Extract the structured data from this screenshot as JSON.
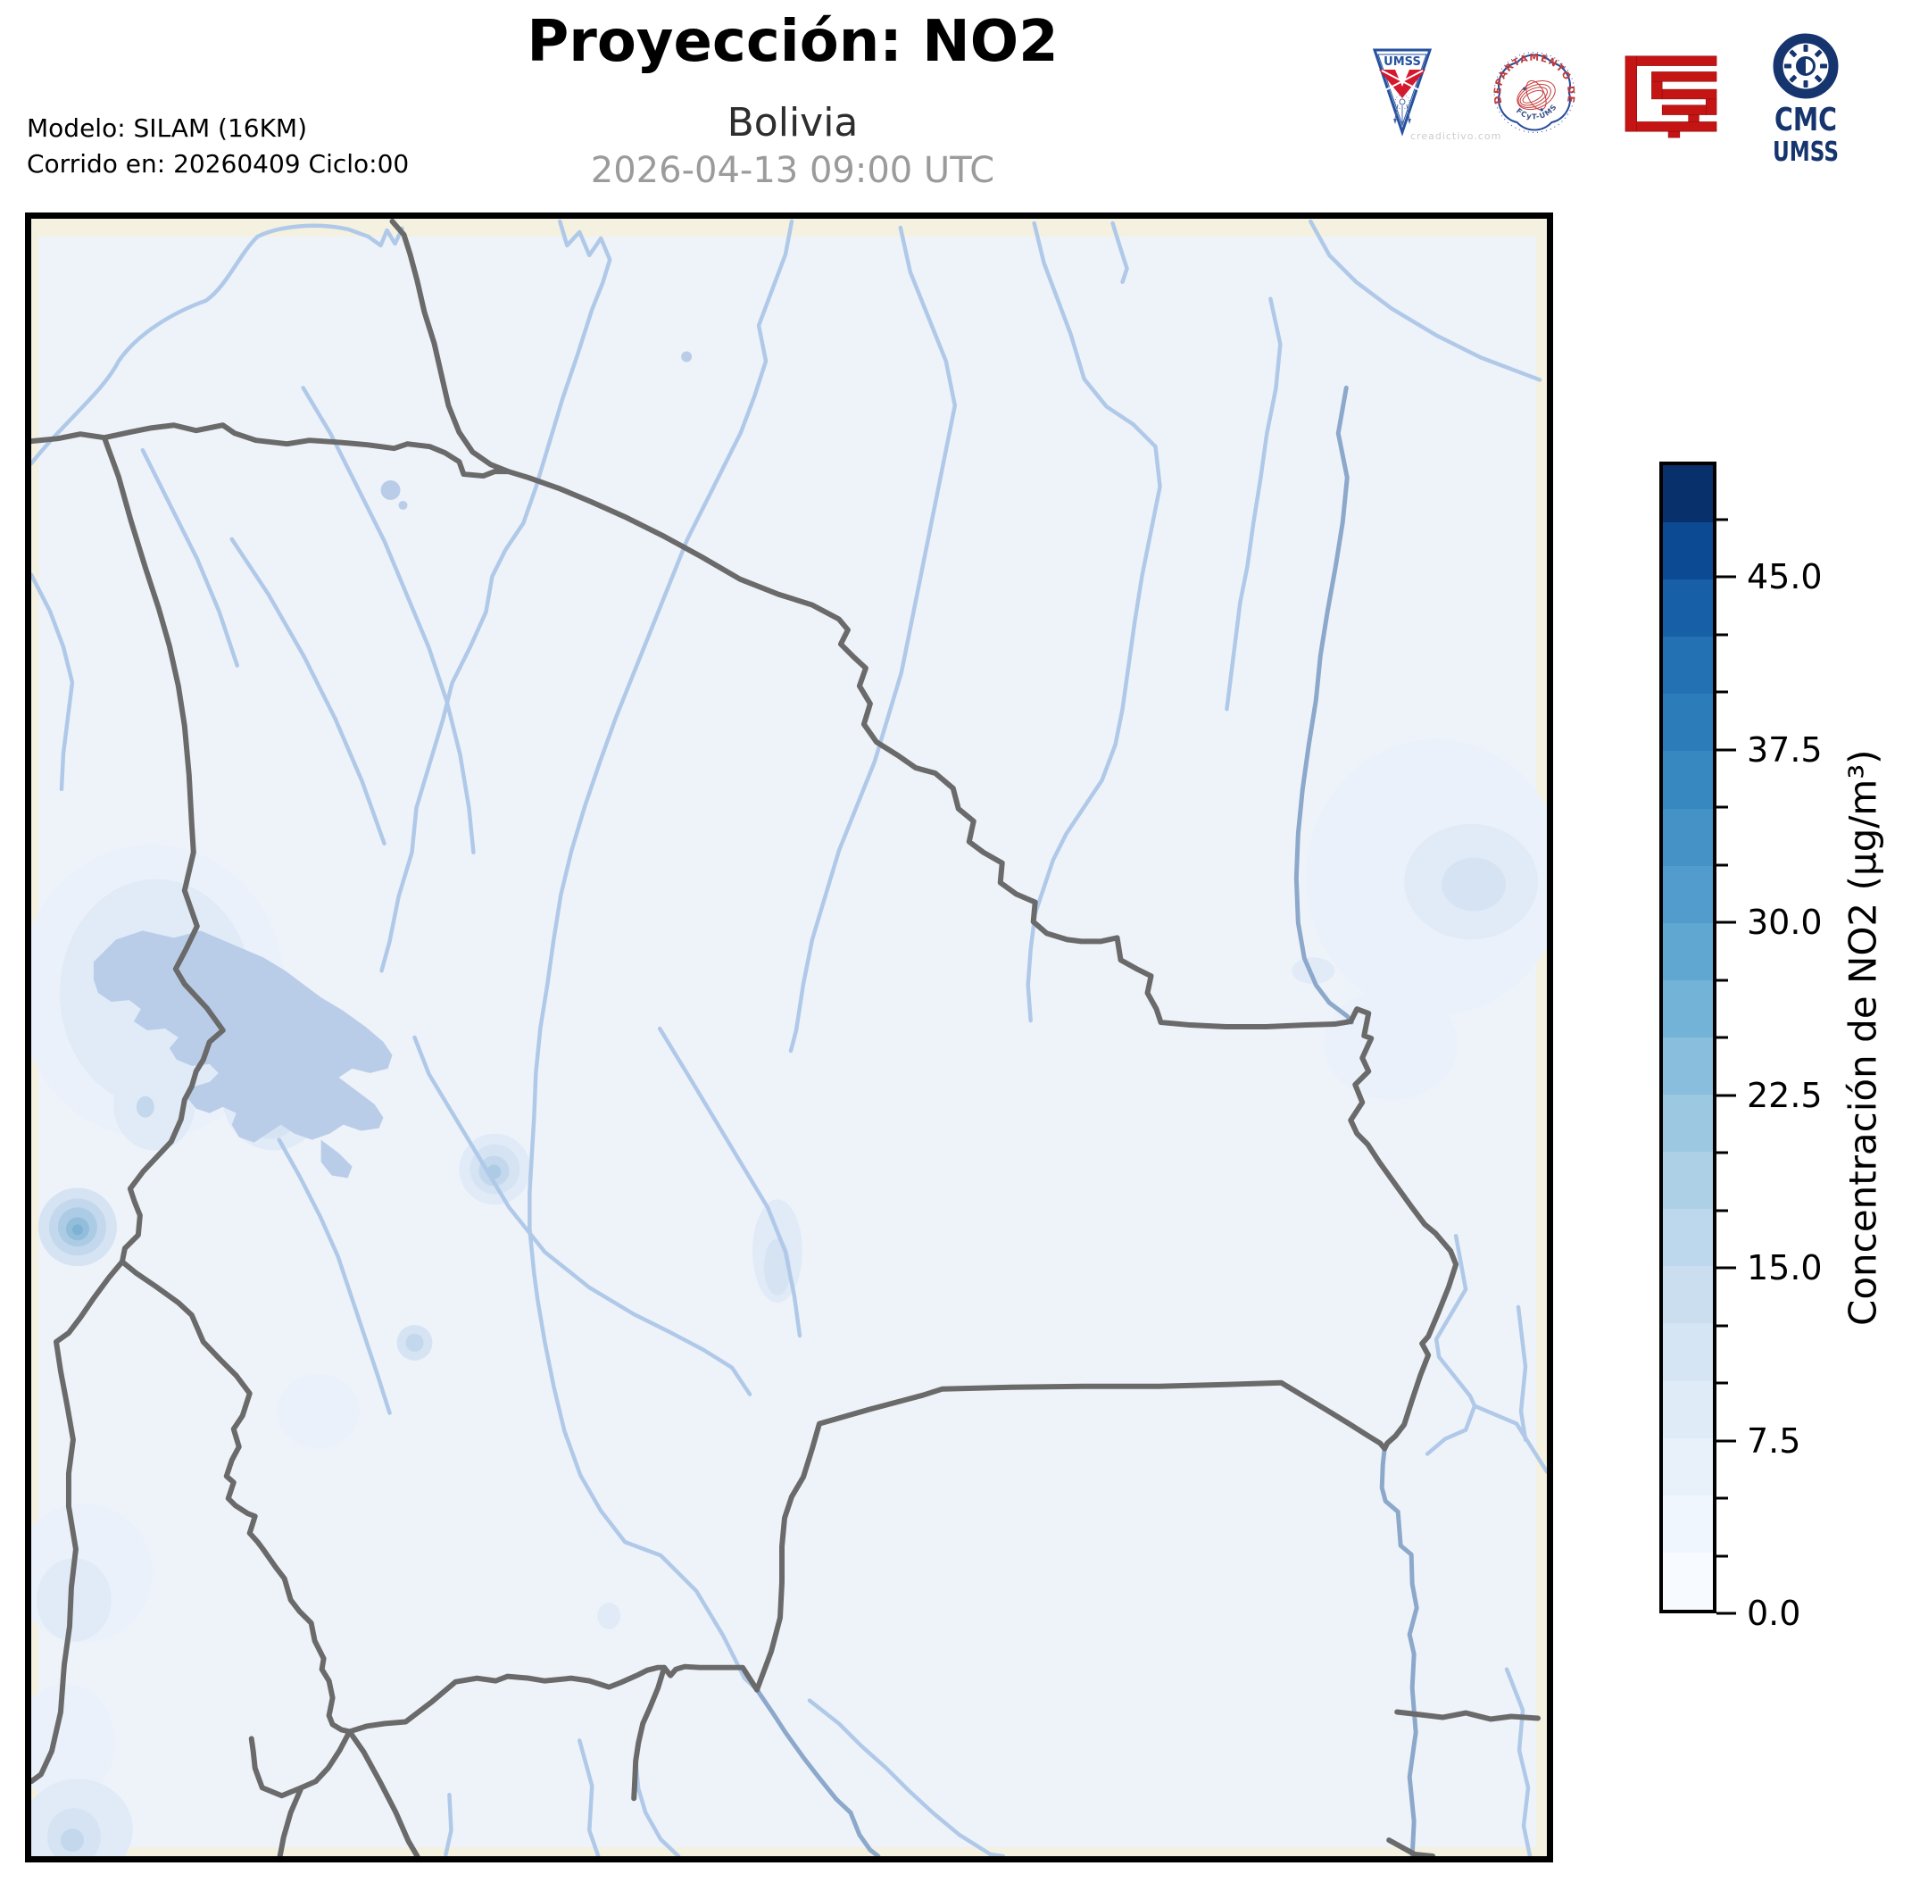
{
  "header": {
    "title": "Proyección: NO2",
    "subtitle": "Bolivia",
    "datetime": "2026-04-13 09:00 UTC",
    "model_line1": "Modelo: SILAM (16KM)",
    "model_line2": "Corrido en: 20260409 Ciclo:00"
  },
  "logos": {
    "umss_pennant_text": "UMSS",
    "umss_watermark": "creadictivo.com",
    "fisica_ring_text": "DEPARTAMENTO DE FÍSICA",
    "fisica_bottom_text": "FCyT-UMSS",
    "cmc_line1": "CMC",
    "cmc_line2": "UMSS"
  },
  "colorbar": {
    "title": "Concentración de NO2 (µg/m³)",
    "unit": "µg/m³",
    "min": 0,
    "max": 50,
    "segment_step": 2.5,
    "minor_tick_step": 2.5,
    "major_ticks": [
      {
        "value": 45,
        "label": "45.0"
      },
      {
        "value": 37.5,
        "label": "37.5"
      },
      {
        "value": 30,
        "label": "30.0"
      },
      {
        "value": 22.5,
        "label": "22.5"
      },
      {
        "value": 15,
        "label": "15.0"
      },
      {
        "value": 7.5,
        "label": "7.5"
      },
      {
        "value": 0,
        "label": "0.0"
      }
    ],
    "segment_colors_bottom_to_top": [
      "#f7fbff",
      "#f0f6fd",
      "#e8f1fa",
      "#dfebf7",
      "#d5e5f4",
      "#cadef0",
      "#bdd7ec",
      "#aed0e6",
      "#9cc8e1",
      "#89bedc",
      "#74b3d8",
      "#60a7d2",
      "#519ccc",
      "#4492c6",
      "#3787c0",
      "#2c7cba",
      "#2371b3",
      "#175fa7",
      "#0d4a94",
      "#08306b"
    ]
  },
  "colors": {
    "title": "#000000",
    "subtitle": "#2e2e2e",
    "muted": "#9b9b9b",
    "frame": "#000000",
    "cream": "#f4f1e1",
    "domain": "#eef3fa",
    "river": "#b0c9e8",
    "river-dark": "#8ca8ca",
    "border": "#6a6a6a",
    "lake": "#b9cde9",
    "l1": "#eaf1fa",
    "l2": "#e1ebf7",
    "l3": "#d5e3f3",
    "l4": "#c3d8ed",
    "l5": "#abcce4",
    "l6": "#92bedc",
    "l7": "#7db2d3",
    "accent-navy": "#16356e",
    "accent-red": "#c51414",
    "seal-red": "#c03a3a",
    "pennant-red": "#d6182e"
  }
}
